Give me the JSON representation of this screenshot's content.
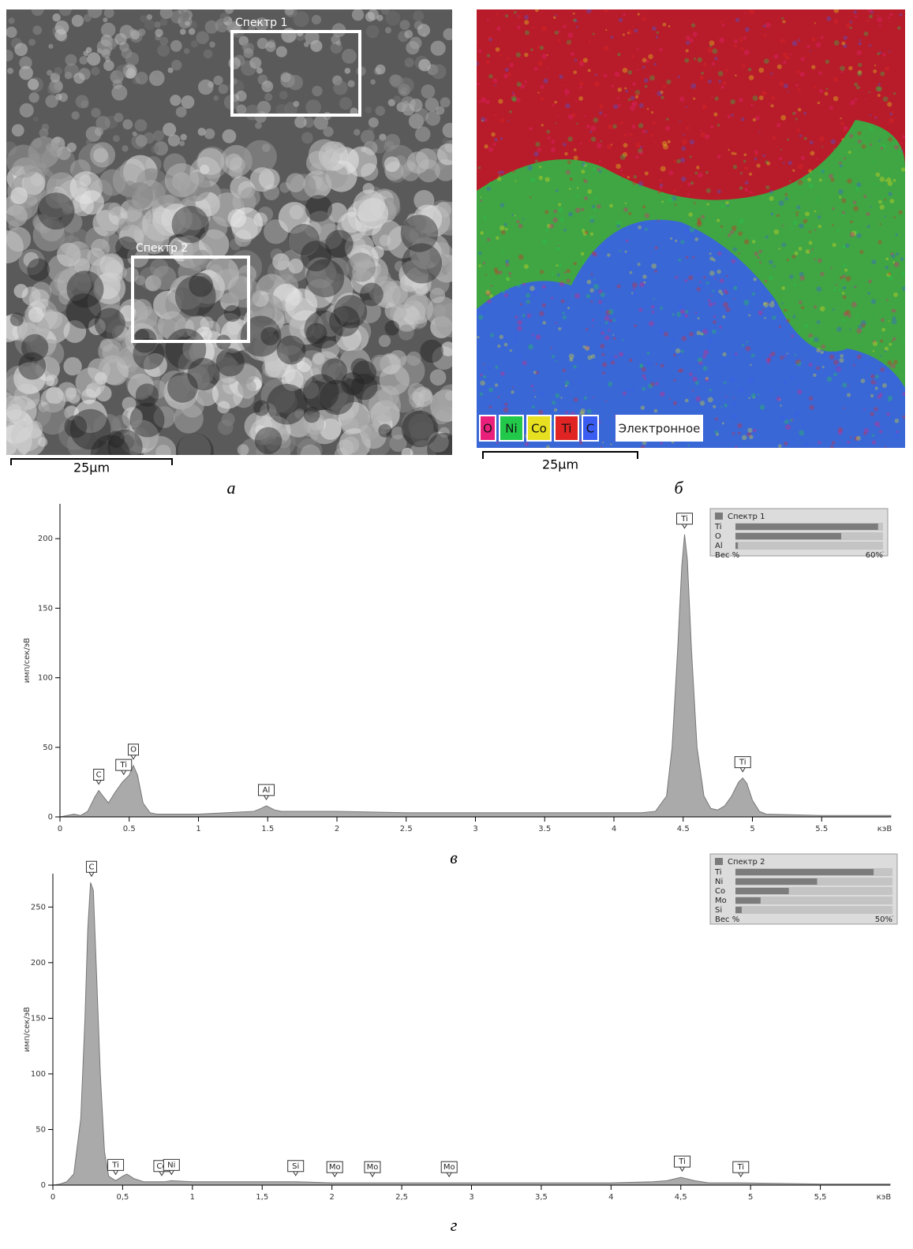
{
  "images": [
    {
      "panel_label": "а",
      "regions": [
        {
          "label": "Спектр 1"
        },
        {
          "label": "Спектр 2"
        }
      ],
      "scale_bar": "25µm"
    },
    {
      "panel_label": "б",
      "legend": [
        {
          "label": "O",
          "color": "#e8207c"
        },
        {
          "label": "Ni",
          "color": "#22c84a"
        },
        {
          "label": "Co",
          "color": "#e6e020"
        },
        {
          "label": "Ti",
          "color": "#e02424"
        },
        {
          "label": "C",
          "color": "#3a5cf0"
        },
        {
          "label": "Электронное",
          "color": "#ffffff"
        }
      ],
      "scale_bar": "25µm"
    }
  ],
  "chart_data": [
    {
      "type": "area",
      "caption": "в",
      "y_label": "имп/сек/эВ",
      "x_label": "кэВ",
      "color": "#aaaaaa",
      "x": [
        0,
        0.05,
        0.1,
        0.15,
        0.2,
        0.25,
        0.28,
        0.31,
        0.35,
        0.4,
        0.45,
        0.5,
        0.53,
        0.56,
        0.6,
        0.65,
        0.7,
        0.8,
        1.0,
        1.2,
        1.4,
        1.45,
        1.49,
        1.55,
        1.6,
        1.8,
        2.0,
        2.5,
        3.0,
        3.5,
        4.0,
        4.2,
        4.3,
        4.38,
        4.42,
        4.46,
        4.49,
        4.51,
        4.53,
        4.56,
        4.6,
        4.65,
        4.7,
        4.75,
        4.8,
        4.85,
        4.9,
        4.93,
        4.96,
        5.0,
        5.05,
        5.1,
        5.5,
        6.0
      ],
      "values": [
        0,
        1,
        2,
        1,
        4,
        14,
        19,
        15,
        10,
        18,
        25,
        30,
        37,
        30,
        10,
        3,
        2,
        2,
        2,
        3,
        4,
        6,
        8,
        5,
        4,
        4,
        4,
        3,
        3,
        3,
        3,
        3,
        4,
        15,
        50,
        120,
        180,
        203,
        185,
        120,
        50,
        15,
        6,
        5,
        8,
        15,
        25,
        28,
        24,
        12,
        4,
        2,
        1,
        1
      ],
      "xlim": [
        0,
        6
      ],
      "ylim": [
        0,
        225
      ],
      "xticks": [
        0,
        0.5,
        1,
        1.5,
        2,
        2.5,
        3,
        3.5,
        4,
        4.5,
        5,
        5.5
      ],
      "yticks": [
        0,
        50,
        100,
        150,
        200
      ],
      "annotations": [
        {
          "text": "C",
          "x": 0.28,
          "y": 19
        },
        {
          "text": "Ti",
          "x": 0.46,
          "y": 26
        },
        {
          "text": "O",
          "x": 0.53,
          "y": 37
        },
        {
          "text": "Al",
          "x": 1.49,
          "y": 8
        },
        {
          "text": "Ti",
          "x": 4.51,
          "y": 203
        },
        {
          "text": "Ti",
          "x": 4.93,
          "y": 28
        }
      ],
      "inset": {
        "title": "Спектр 1",
        "categories": [
          "Ti",
          "O",
          "Al"
        ],
        "values": [
          58,
          43,
          1
        ],
        "x_label": "Вес %",
        "xlim": [
          0,
          60
        ],
        "xticks": [
          {
            "value": 60,
            "label": "60%"
          }
        ]
      }
    },
    {
      "type": "area",
      "caption": "г",
      "y_label": "имп/сек/эВ",
      "x_label": "кэВ",
      "color": "#aaaaaa",
      "x": [
        0,
        0.05,
        0.1,
        0.15,
        0.2,
        0.23,
        0.25,
        0.27,
        0.29,
        0.31,
        0.34,
        0.37,
        0.4,
        0.45,
        0.5,
        0.53,
        0.58,
        0.65,
        0.8,
        0.85,
        1.0,
        1.5,
        1.75,
        2.0,
        2.5,
        3.0,
        3.5,
        4.0,
        4.3,
        4.4,
        4.5,
        4.6,
        4.7,
        4.93,
        5.5,
        6.0
      ],
      "values": [
        0,
        1,
        3,
        10,
        60,
        150,
        230,
        272,
        265,
        200,
        100,
        30,
        8,
        4,
        8,
        10,
        6,
        3,
        3,
        4,
        3,
        3,
        3,
        2,
        2,
        2,
        2,
        2,
        3,
        4,
        7,
        4,
        2,
        2,
        1,
        1
      ],
      "xlim": [
        0,
        6
      ],
      "ylim": [
        0,
        280
      ],
      "xticks": [
        0,
        {
          "value": 0.5,
          "label": "0,5"
        },
        1,
        {
          "value": 1.5,
          "label": "1,5"
        },
        2,
        {
          "value": 2.5,
          "label": "2,5"
        },
        3,
        {
          "value": 3.5,
          "label": "3,5"
        },
        4,
        {
          "value": 4.5,
          "label": "4,5"
        },
        5,
        {
          "value": 5.5,
          "label": "5,5"
        }
      ],
      "yticks": [
        0,
        50,
        100,
        150,
        200,
        250
      ],
      "annotations": [
        {
          "text": "C",
          "x": 0.277,
          "y": 272
        },
        {
          "text": "Ti",
          "x": 0.45,
          "y": 4
        },
        {
          "text": "Co",
          "x": 0.78,
          "y": 3
        },
        {
          "text": "Ni",
          "x": 0.85,
          "y": 4
        },
        {
          "text": "Si",
          "x": 1.74,
          "y": 3
        },
        {
          "text": "Mo",
          "x": 2.02,
          "y": 2
        },
        {
          "text": "Mo",
          "x": 2.29,
          "y": 2
        },
        {
          "text": "Mo",
          "x": 2.84,
          "y": 2
        },
        {
          "text": "Ti",
          "x": 4.51,
          "y": 7
        },
        {
          "text": "Ti",
          "x": 4.93,
          "y": 2
        }
      ],
      "inset": {
        "title": "Спектр 2",
        "categories": [
          "Ti",
          "Ni",
          "Co",
          "Mo",
          "Si"
        ],
        "values": [
          44,
          26,
          17,
          8,
          2
        ],
        "x_label": "Вес %",
        "xlim": [
          0,
          50
        ],
        "xticks": [
          {
            "value": 50,
            "label": "50%"
          }
        ]
      }
    }
  ]
}
